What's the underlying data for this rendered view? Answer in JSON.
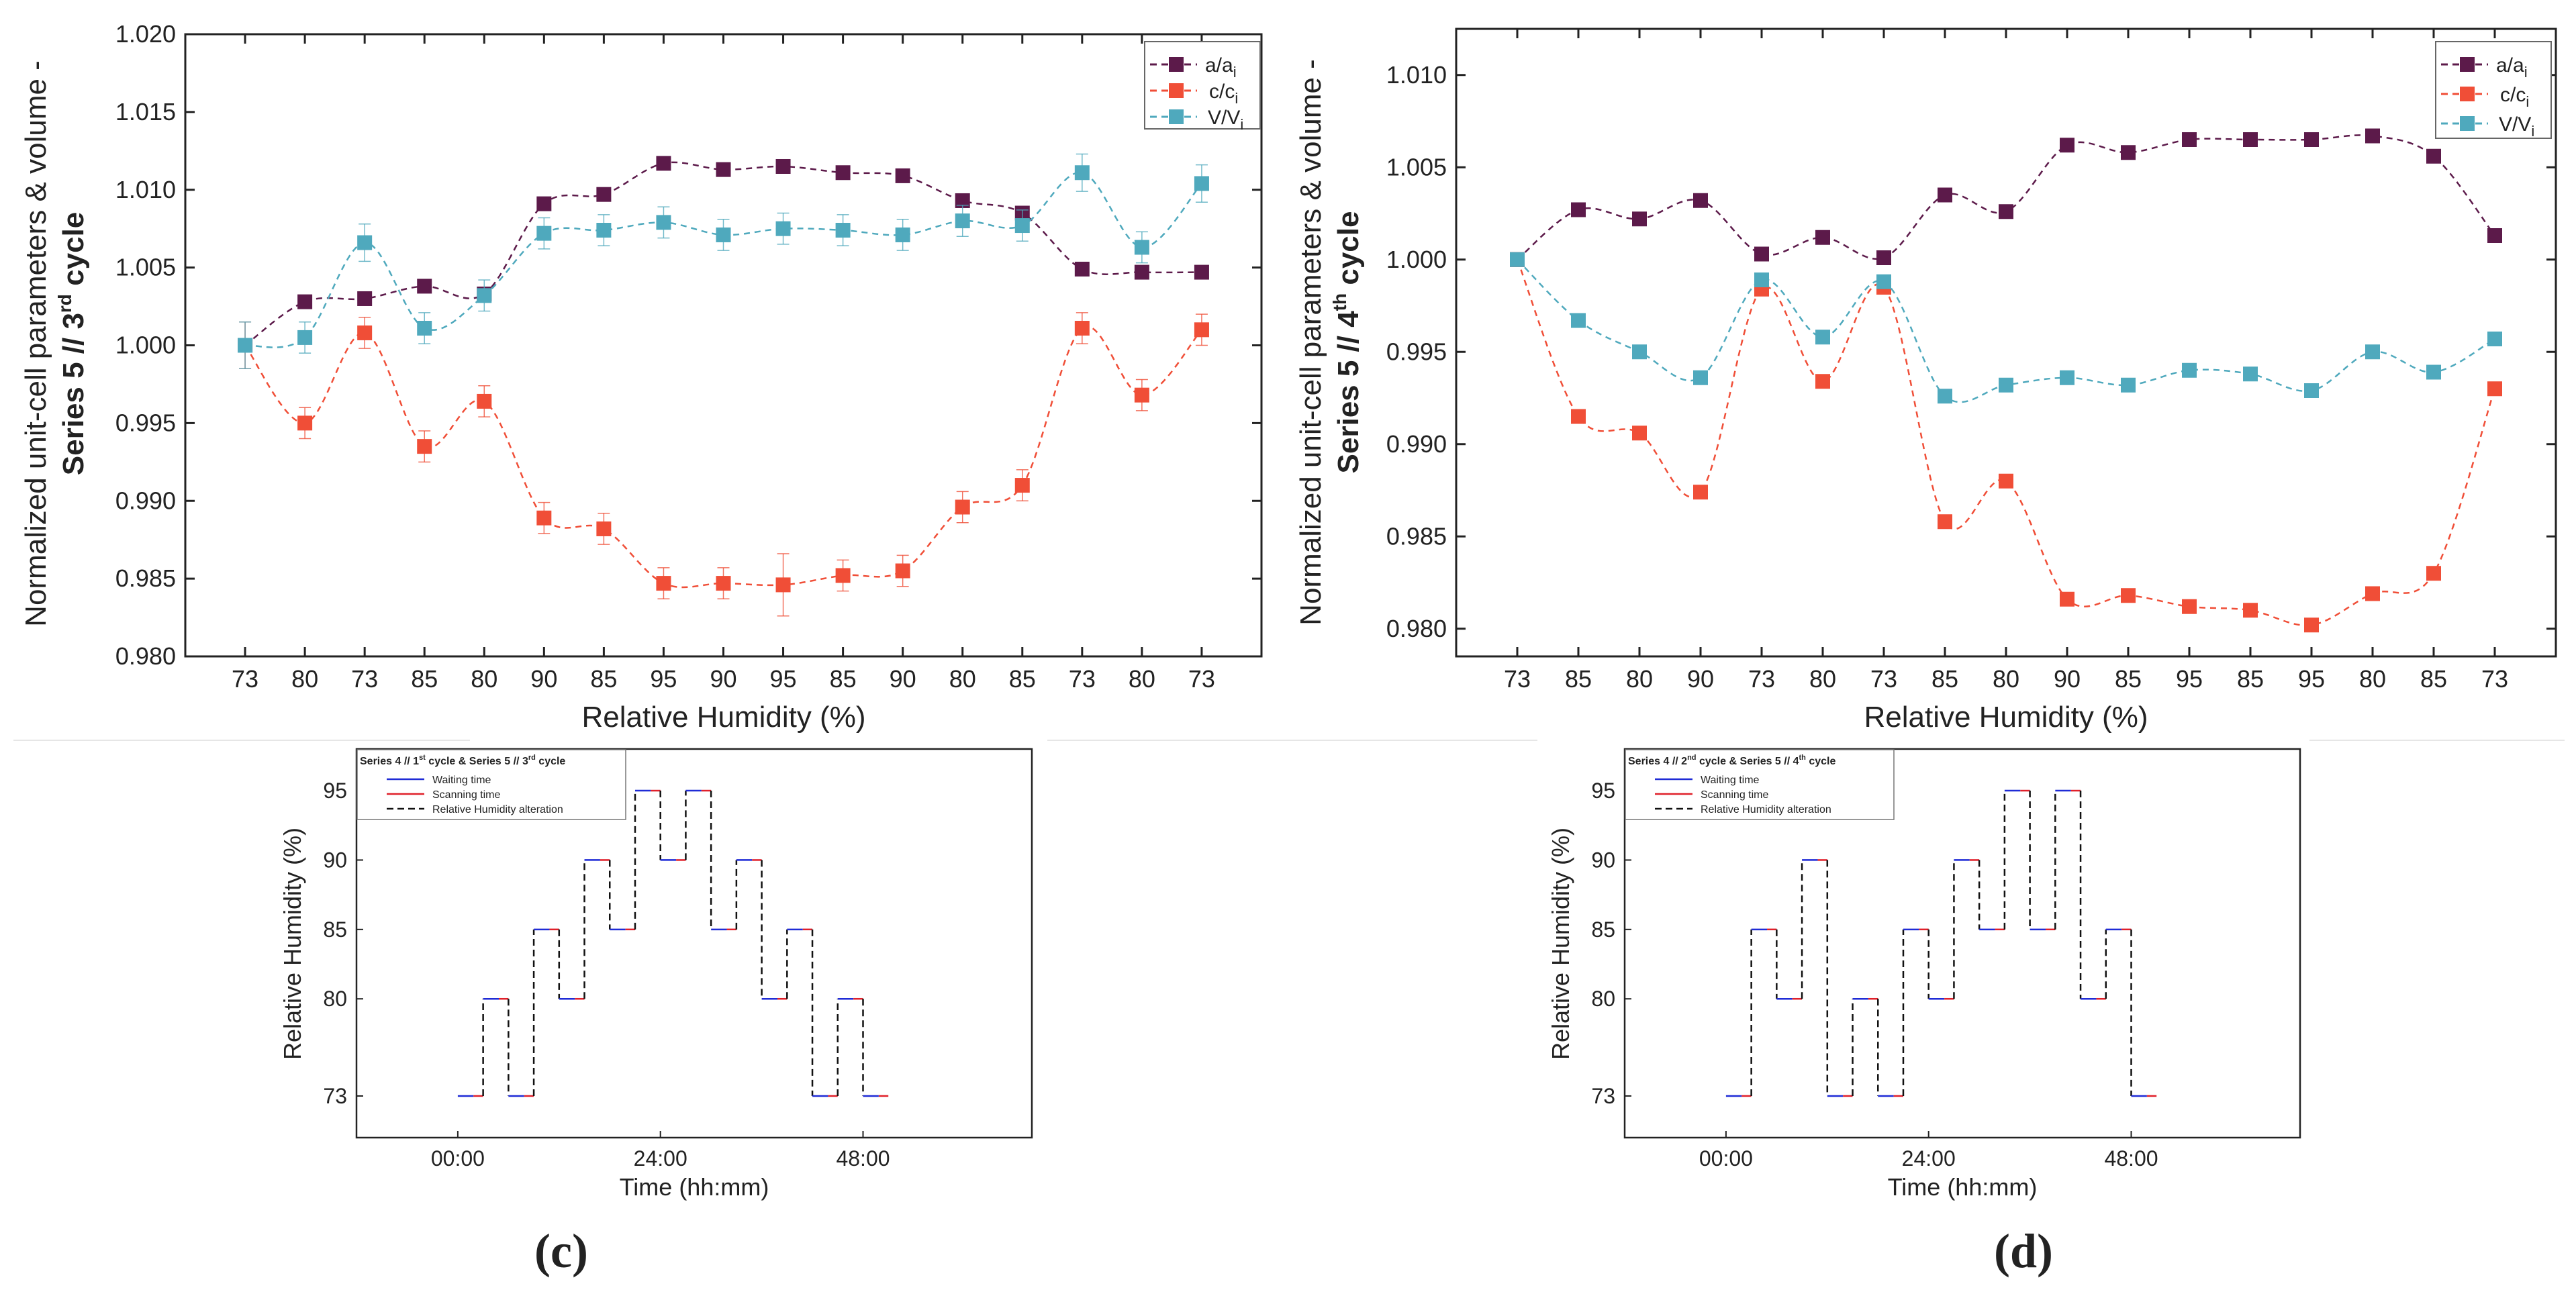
{
  "chart_data": [
    {
      "id": "c-top",
      "type": "line",
      "ylabel_main": "Normalized unit-cell parameters & volume -",
      "ylabel_series": "Series 5 // 3",
      "ylabel_sup": "rd",
      "ylabel_end": " cycle",
      "xlabel": "Relative Humidity (%)",
      "categories": [
        "73",
        "80",
        "73",
        "85",
        "80",
        "90",
        "85",
        "95",
        "90",
        "95",
        "85",
        "90",
        "80",
        "85",
        "73",
        "80",
        "73"
      ],
      "ylim": [
        0.98,
        1.02
      ],
      "yticks": [
        "0.980",
        "0.985",
        "0.990",
        "0.995",
        "1.000",
        "1.005",
        "1.010",
        "1.015",
        "1.020"
      ],
      "legend": [
        {
          "base": "a/a",
          "sub": "i"
        },
        {
          "base": "c/c",
          "sub": "i"
        },
        {
          "base": "V/V",
          "sub": "i"
        }
      ],
      "series": [
        {
          "name": "a/ai",
          "color": "#5c1a4a",
          "values": [
            1.0,
            1.0028,
            1.003,
            1.0038,
            1.0033,
            1.0091,
            1.0097,
            1.0117,
            1.0113,
            1.0115,
            1.0111,
            1.0109,
            1.0093,
            1.0085,
            1.0049,
            1.0047,
            1.0047
          ],
          "err": null
        },
        {
          "name": "c/ci",
          "color": "#f04e37",
          "values": [
            1.0,
            0.995,
            1.0008,
            0.9935,
            0.9964,
            0.9889,
            0.9882,
            0.9847,
            0.9847,
            0.9846,
            0.9852,
            0.9855,
            0.9896,
            0.991,
            1.0011,
            0.9968,
            1.001
          ],
          "err": [
            0.0015,
            0.001,
            0.001,
            0.001,
            0.001,
            0.001,
            0.001,
            0.001,
            0.001,
            0.002,
            0.001,
            0.001,
            0.001,
            0.001,
            0.001,
            0.001,
            0.001
          ]
        },
        {
          "name": "V/Vi",
          "color": "#4fa9bd",
          "values": [
            1.0,
            1.0005,
            1.0066,
            1.0011,
            1.0032,
            1.0072,
            1.0074,
            1.0079,
            1.0071,
            1.0075,
            1.0074,
            1.0071,
            1.008,
            1.0077,
            1.0111,
            1.0063,
            1.0104
          ],
          "err": [
            0.0015,
            0.001,
            0.0012,
            0.001,
            0.001,
            0.001,
            0.001,
            0.001,
            0.001,
            0.001,
            0.001,
            0.001,
            0.001,
            0.001,
            0.0012,
            0.001,
            0.0012
          ]
        }
      ]
    },
    {
      "id": "d-top",
      "type": "line",
      "ylabel_main": "Normalized unit-cell parameters & volume -",
      "ylabel_series": "Series 5 // 4",
      "ylabel_sup": "th",
      "ylabel_end": " cycle",
      "xlabel": "Relative Humidity (%)",
      "categories": [
        "73",
        "85",
        "80",
        "90",
        "73",
        "80",
        "73",
        "85",
        "80",
        "90",
        "85",
        "95",
        "85",
        "95",
        "80",
        "85",
        "73"
      ],
      "ylim": [
        0.9785,
        1.0125
      ],
      "yticks": [
        "0.980",
        "0.985",
        "0.990",
        "0.995",
        "1.000",
        "1.005",
        "1.010"
      ],
      "legend": [
        {
          "base": "a/a",
          "sub": "i"
        },
        {
          "base": "c/c",
          "sub": "i"
        },
        {
          "base": "V/V",
          "sub": "i"
        }
      ],
      "series": [
        {
          "name": "a/ai",
          "color": "#5c1a4a",
          "values": [
            1.0,
            1.0027,
            1.0022,
            1.0032,
            1.0003,
            1.0012,
            1.0001,
            1.0035,
            1.0026,
            1.0062,
            1.0058,
            1.0065,
            1.0065,
            1.0065,
            1.0067,
            1.0056,
            1.0013
          ],
          "err": null
        },
        {
          "name": "c/ci",
          "color": "#f04e37",
          "values": [
            1.0,
            0.9915,
            0.9906,
            0.9874,
            0.9984,
            0.9934,
            0.9985,
            0.9858,
            0.988,
            0.9816,
            0.9818,
            0.9812,
            0.981,
            0.9802,
            0.9819,
            0.983,
            0.993
          ],
          "err": null
        },
        {
          "name": "V/Vi",
          "color": "#4fa9bd",
          "values": [
            1.0,
            0.9967,
            0.995,
            0.9936,
            0.9989,
            0.9958,
            0.9988,
            0.9926,
            0.9932,
            0.9936,
            0.9932,
            0.994,
            0.9938,
            0.9929,
            0.995,
            0.9939,
            0.9957
          ],
          "err": null
        }
      ]
    },
    {
      "id": "c-bottom",
      "type": "line",
      "legend_title_pre": "Series 4 // 1",
      "legend_title_sup1": "st",
      "legend_title_mid": " cycle & Series 5 // 3",
      "legend_title_sup2": "rd",
      "legend_title_end": " cycle",
      "legend": [
        "Waiting time",
        "Scanning time",
        "Relative Humidity alteration"
      ],
      "xlabel": "Time (hh:mm)",
      "ylabel": "Relative Humidity (%)",
      "xticks": [
        "00:00",
        "24:00",
        "48:00"
      ],
      "xtick_values": [
        0,
        24,
        48
      ],
      "xlim": [
        -12,
        68
      ],
      "yticks": [
        "73",
        "80",
        "85",
        "90",
        "95"
      ],
      "ytick_values": [
        73,
        80,
        85,
        90,
        95
      ],
      "ylim": [
        70,
        98
      ],
      "step_rh": [
        73,
        80,
        73,
        85,
        80,
        90,
        85,
        95,
        90,
        95,
        85,
        90,
        80,
        85,
        73,
        80,
        73
      ],
      "step_start": 0,
      "step_hours": 3
    },
    {
      "id": "d-bottom",
      "type": "line",
      "legend_title_pre": "Series 4 // 2",
      "legend_title_sup1": "nd",
      "legend_title_mid": " cycle & Series 5 // 4",
      "legend_title_sup2": "th",
      "legend_title_end": " cycle",
      "legend": [
        "Waiting time",
        "Scanning time",
        "Relative Humidity alteration"
      ],
      "xlabel": "Time (hh:mm)",
      "ylabel": "Relative Humidity (%)",
      "xticks": [
        "00:00",
        "24:00",
        "48:00"
      ],
      "xtick_values": [
        0,
        24,
        48
      ],
      "xlim": [
        -12,
        68
      ],
      "yticks": [
        "73",
        "80",
        "85",
        "90",
        "95"
      ],
      "ytick_values": [
        73,
        80,
        85,
        90,
        95
      ],
      "ylim": [
        70,
        98
      ],
      "step_rh": [
        73,
        85,
        80,
        90,
        73,
        80,
        73,
        85,
        80,
        90,
        85,
        95,
        85,
        95,
        80,
        85,
        73
      ],
      "step_start": 0,
      "step_hours": 3
    }
  ],
  "panel_labels": {
    "c": "(c)",
    "d": "(d)"
  },
  "colors": {
    "waiting": "#1f2bd6",
    "scanning": "#e0202a",
    "alteration": "#111111",
    "axis": "#222222"
  }
}
